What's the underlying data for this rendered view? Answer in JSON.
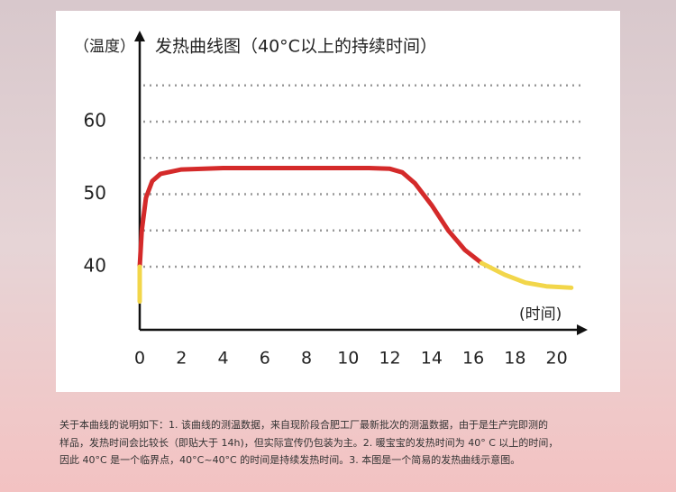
{
  "chart_data": {
    "type": "line",
    "title": "发热曲线图（40°C以上的持续时间）",
    "y_label": "（温度）",
    "x_label": "(时间)",
    "xlim": [
      0,
      21.4
    ],
    "xticks": [
      0,
      2,
      4,
      6,
      8,
      10,
      12,
      14,
      16,
      18,
      20
    ],
    "ylim": [
      31.3,
      71.8
    ],
    "yticks": [
      40,
      50,
      60
    ],
    "grid_lines": [
      40,
      45,
      50,
      55,
      60,
      65
    ],
    "series": [
      {
        "color": "#d42a2a",
        "x": [
          0,
          0.1,
          0.3,
          0.6,
          1,
          2,
          4,
          8,
          11,
          12,
          12.6,
          13.2,
          14,
          14.8,
          15.6,
          16.4
        ],
        "values": [
          40,
          45,
          49.5,
          51.8,
          52.8,
          53.4,
          53.6,
          53.6,
          53.6,
          53.5,
          53,
          51.5,
          48.5,
          45,
          42.3,
          40.5
        ]
      },
      {
        "color": "#f2d64a",
        "x": [
          0,
          0,
          null,
          16.4,
          17.5,
          18.5,
          19.5,
          20.7
        ],
        "values": [
          35.2,
          40,
          null,
          40.5,
          38.9,
          37.8,
          37.3,
          37.1
        ]
      }
    ]
  },
  "note": [
    "关于本曲线的说明如下：1. 该曲线的测温数据，来自现阶段合肥工厂最新批次的测温数据，由于是生产完即测的",
    "样品，发热时间会比较长（即贴大于 14h)，但实际宣传仍包装为主。2. 暖宝宝的发热时间为 40° C 以上的时间，",
    "因此 40°C 是一个临界点，40°C~40°C 的时间是持续发热时间。3. 本图是一个简易的发热曲线示意图。"
  ]
}
